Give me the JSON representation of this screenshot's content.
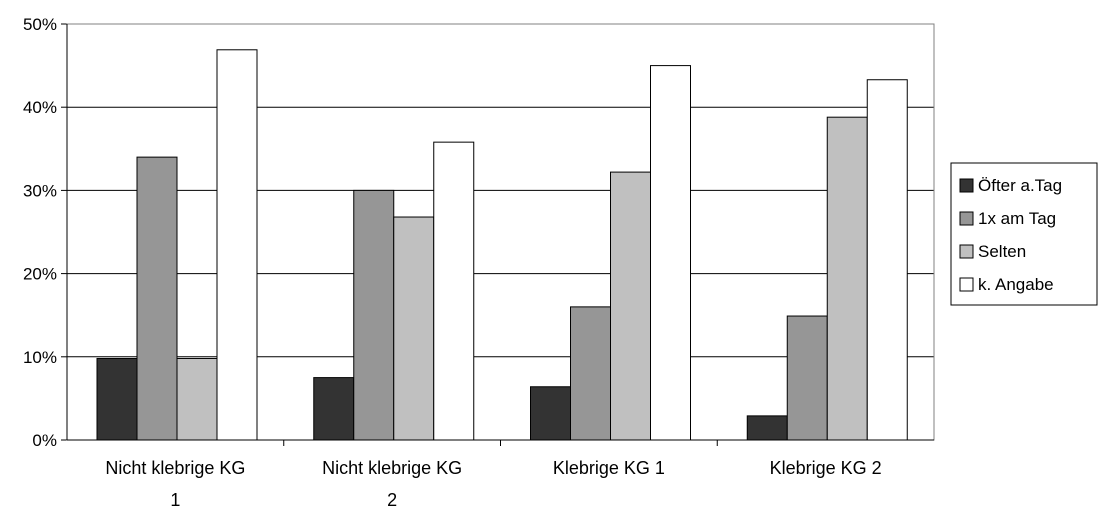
{
  "chart_data": {
    "type": "bar",
    "categories": [
      [
        "Nicht klebrige KG",
        "1"
      ],
      [
        "Nicht klebrige KG",
        "2"
      ],
      [
        "Klebrige KG 1"
      ],
      [
        "Klebrige KG 2"
      ]
    ],
    "series": [
      {
        "name": "Öfter a.Tag",
        "color": "#333333",
        "values": [
          9.8,
          7.5,
          6.4,
          2.9
        ]
      },
      {
        "name": "1x am Tag",
        "color": "#969696",
        "values": [
          34.0,
          30.0,
          16.0,
          14.9
        ]
      },
      {
        "name": "Selten",
        "color": "#c0c0c0",
        "values": [
          9.8,
          26.8,
          32.2,
          38.8
        ]
      },
      {
        "name": "k. Angabe",
        "color": "#ffffff",
        "values": [
          46.9,
          35.8,
          45.0,
          43.3
        ]
      }
    ],
    "yticks": [
      "0%",
      "10%",
      "20%",
      "30%",
      "40%",
      "50%"
    ],
    "ylim": [
      0,
      50
    ],
    "grid": true,
    "legend": "right"
  }
}
